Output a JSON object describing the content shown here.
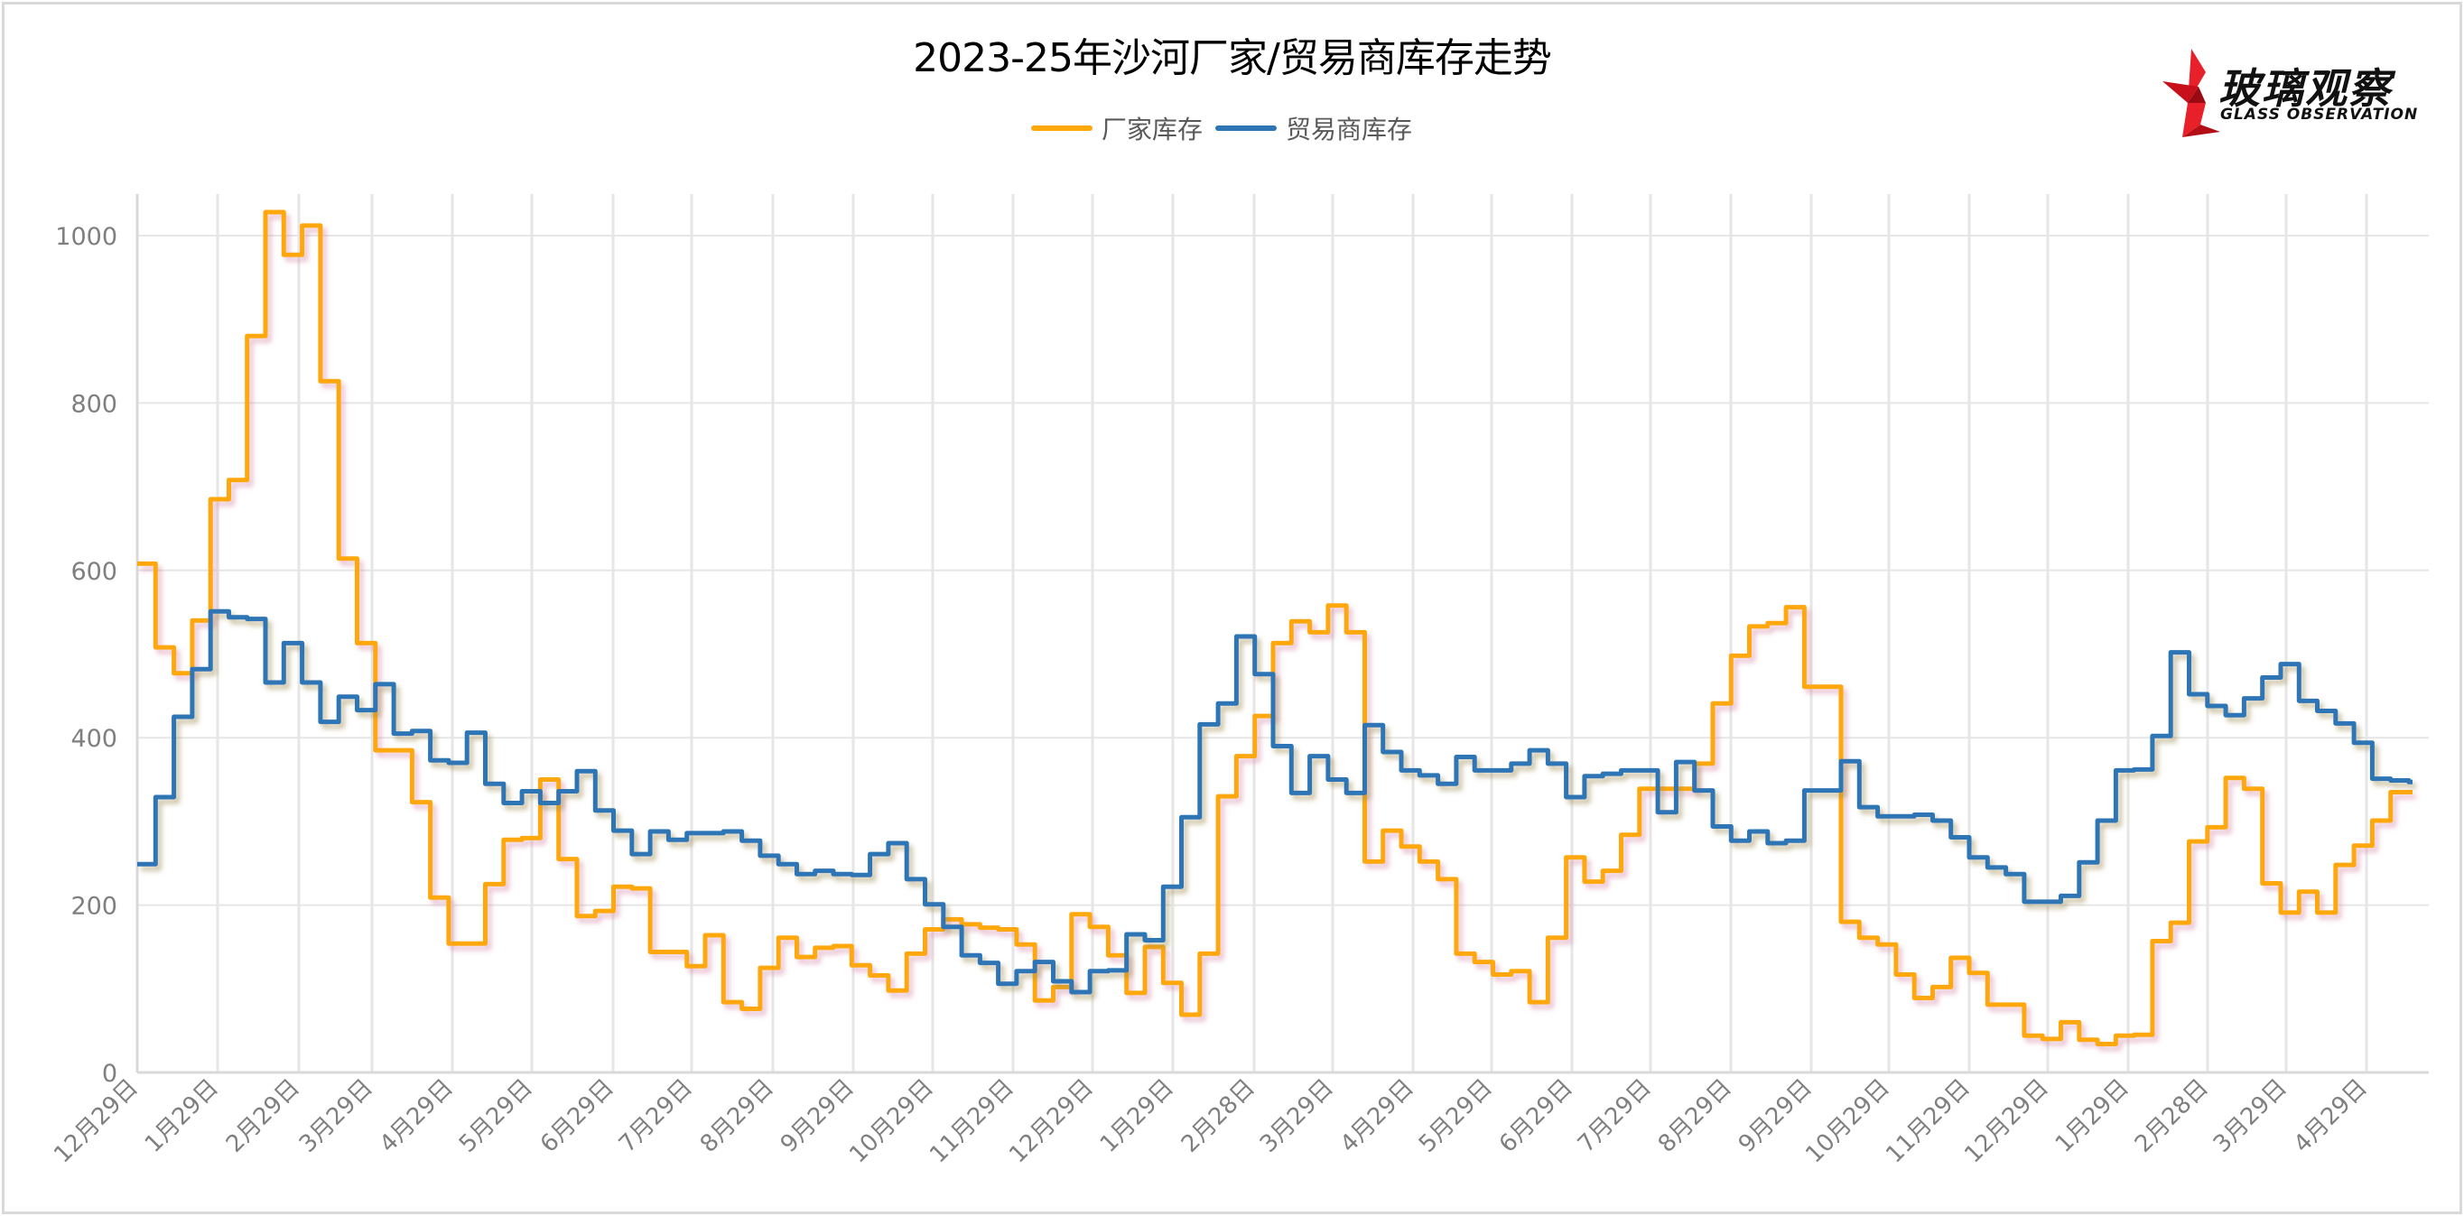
{
  "title": "2023-25年沙河厂家/贸易商库存走势",
  "legend": [
    {
      "label": "厂家库存",
      "color": "#FFA80B"
    },
    {
      "label": "贸易商库存",
      "color": "#2E75B6"
    }
  ],
  "logo": {
    "cn": "玻璃观察",
    "en": "GLASS OBSERVATION",
    "accent": "#E8202A"
  },
  "chart_data": {
    "type": "line",
    "step": true,
    "title": "2023-25年沙河厂家/贸易商库存走势",
    "xlabel": "",
    "ylabel": "",
    "ylim": [
      0,
      1050
    ],
    "yticks": [
      0,
      200,
      400,
      600,
      800,
      1000
    ],
    "grid": true,
    "legend_position": "top",
    "x_tick_labels": [
      "12月29日",
      "1月29日",
      "2月29日",
      "3月29日",
      "4月29日",
      "5月29日",
      "6月29日",
      "7月29日",
      "8月29日",
      "9月29日",
      "10月29日",
      "11月29日",
      "12月29日",
      "1月29日",
      "2月28日",
      "3月29日",
      "4月29日",
      "5月29日",
      "6月29日",
      "7月29日",
      "8月29日",
      "9月29日",
      "10月29日",
      "11月29日",
      "12月29日",
      "1月29日",
      "2月28日",
      "3月29日",
      "4月29日"
    ],
    "x_tick_dates": [
      "2023-12-29",
      "2024-01-29",
      "2024-02-29",
      "2024-03-29",
      "2024-04-29",
      "2024-05-29",
      "2024-06-29",
      "2024-07-29",
      "2024-08-29",
      "2024-09-29",
      "2024-10-29",
      "2024-11-29",
      "2024-12-29",
      "2025-01-29",
      "2025-02-28",
      "2025-03-29",
      "2025-04-29",
      "2025-05-29",
      "2025-06-29",
      "2025-07-29",
      "2025-08-29",
      "2025-09-29",
      "2025-10-29",
      "2025-11-29",
      "2025-12-29",
      "2026-01-29",
      "2026-02-28",
      "2026-03-29",
      "2026-04-29"
    ],
    "x_frequency": "weekly (approx.), starting 12月29日",
    "series": [
      {
        "name": "厂家库存",
        "color": "#FFA80B",
        "values": [
          608,
          508,
          477,
          540,
          685,
          708,
          880,
          1028,
          977,
          1012,
          826,
          614,
          513,
          385,
          385,
          323,
          209,
          154,
          154,
          225,
          278,
          280,
          350,
          255,
          187,
          193,
          222,
          220,
          144,
          144,
          127,
          164,
          84,
          76,
          125,
          161,
          138,
          149,
          151,
          128,
          116,
          98,
          142,
          171,
          183,
          177,
          173,
          171,
          153,
          86,
          102,
          189,
          174,
          140,
          95,
          150,
          107,
          69,
          142,
          330,
          378,
          426,
          513,
          539,
          526,
          558,
          526,
          252,
          289,
          270,
          252,
          231,
          142,
          132,
          117,
          121,
          84,
          161,
          257,
          228,
          241,
          284,
          339,
          339,
          339,
          369,
          441,
          498,
          533,
          537,
          556,
          461,
          461,
          180,
          161,
          153,
          117,
          89,
          102,
          137,
          119,
          81,
          81,
          44,
          40,
          60,
          39,
          34,
          44,
          45,
          157,
          179,
          276,
          293,
          352,
          339,
          226,
          191,
          216,
          191,
          248,
          271,
          301,
          335,
          335
        ]
      },
      {
        "name": "贸易商库存",
        "color": "#2E75B6",
        "values": [
          249,
          329,
          425,
          482,
          551,
          544,
          542,
          466,
          513,
          466,
          419,
          449,
          433,
          464,
          405,
          408,
          373,
          370,
          406,
          345,
          322,
          336,
          322,
          336,
          360,
          313,
          289,
          261,
          288,
          278,
          286,
          286,
          288,
          277,
          259,
          249,
          237,
          241,
          237,
          236,
          261,
          274,
          231,
          201,
          174,
          140,
          131,
          106,
          121,
          132,
          109,
          96,
          121,
          122,
          165,
          158,
          222,
          305,
          416,
          441,
          521,
          476,
          390,
          334,
          378,
          350,
          334,
          415,
          383,
          361,
          355,
          345,
          377,
          361,
          361,
          369,
          385,
          369,
          329,
          354,
          357,
          361,
          361,
          311,
          371,
          337,
          294,
          277,
          288,
          274,
          277,
          337,
          337,
          372,
          317,
          306,
          306,
          308,
          301,
          281,
          257,
          245,
          237,
          204,
          204,
          211,
          251,
          301,
          361,
          362,
          402,
          502,
          452,
          438,
          427,
          447,
          472,
          488,
          444,
          432,
          417,
          394,
          351,
          349,
          347
        ]
      }
    ]
  }
}
